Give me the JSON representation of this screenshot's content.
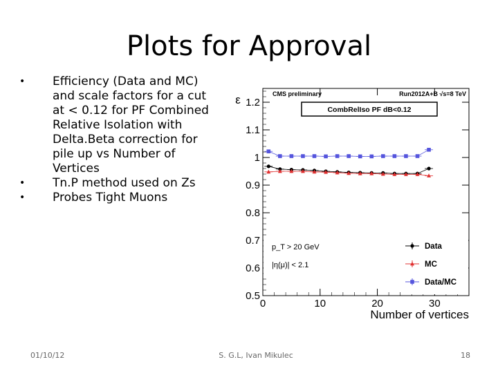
{
  "slide": {
    "title": "Plots for Approval",
    "bullets": [
      "Efficiency (Data and MC) and scale factors for a cut at < 0.12 for PF Combined Relative Isolation with Delta.Beta correction for pile up vs Number of Vertices",
      "Tn.P method used on Zs",
      "Probes Tight Muons"
    ],
    "footer": {
      "date": "01/10/12",
      "author": "S. G.L, Ivan Mikulec",
      "page": "18"
    }
  },
  "colors": {
    "data": "#000000",
    "mc": "#e03030",
    "ratio": "#5555dd"
  },
  "chart_data": {
    "type": "scatter",
    "header_left": "CMS preliminary",
    "header_right": "Run2012A+B  √s=8 TeV",
    "title": "CombRelIso PF dB<0.12",
    "xlabel": "Number of vertices",
    "ylabel": "ε",
    "xlim": [
      0,
      36
    ],
    "ylim": [
      0.5,
      1.25
    ],
    "xticks": [
      0,
      10,
      20,
      30
    ],
    "yticks": [
      0.5,
      0.6,
      0.7,
      0.8,
      0.9,
      1,
      1.1,
      1.2
    ],
    "annotation_lines": [
      "p_T > 20 GeV",
      "|η(μ)| < 2.1"
    ],
    "legend_position": "bottom-right",
    "x": [
      1,
      3,
      5,
      7,
      9,
      11,
      13,
      15,
      17,
      19,
      21,
      23,
      25,
      27,
      29
    ],
    "series": [
      {
        "name": "Data",
        "marker": "circle",
        "color": "#000000",
        "values": [
          0.968,
          0.958,
          0.956,
          0.955,
          0.953,
          0.95,
          0.948,
          0.946,
          0.945,
          0.944,
          0.944,
          0.942,
          0.942,
          0.942,
          0.96
        ]
      },
      {
        "name": "MC",
        "marker": "triangle",
        "color": "#e03030",
        "values": [
          0.948,
          0.95,
          0.95,
          0.95,
          0.948,
          0.947,
          0.945,
          0.943,
          0.942,
          0.942,
          0.94,
          0.939,
          0.939,
          0.939,
          0.934
        ]
      },
      {
        "name": "Data/MC",
        "marker": "square",
        "color": "#5555dd",
        "values": [
          1.022,
          1.005,
          1.005,
          1.005,
          1.005,
          1.004,
          1.005,
          1.005,
          1.004,
          1.004,
          1.005,
          1.005,
          1.005,
          1.005,
          1.028
        ]
      }
    ]
  }
}
